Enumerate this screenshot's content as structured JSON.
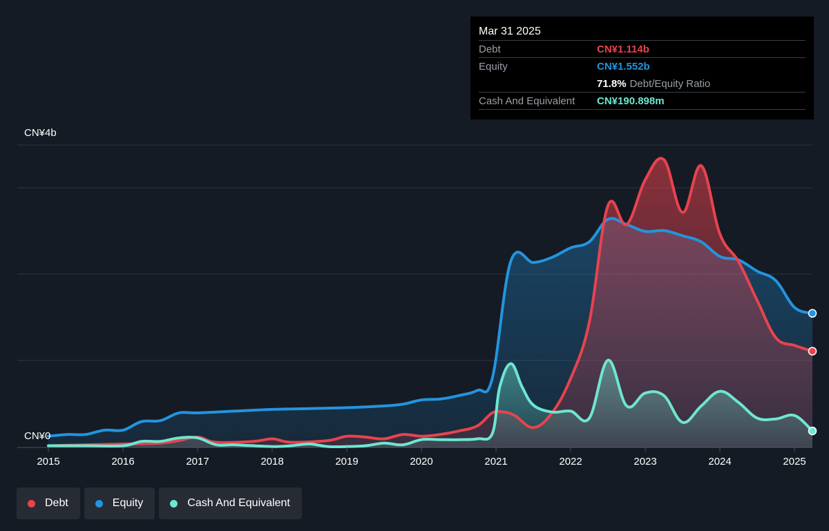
{
  "tooltip": {
    "date": "Mar 31 2025",
    "debt_label": "Debt",
    "debt_value": "CN¥1.114b",
    "equity_label": "Equity",
    "equity_value": "CN¥1.552b",
    "ratio_value": "71.8%",
    "ratio_label": "Debt/Equity Ratio",
    "cash_label": "Cash And Equivalent",
    "cash_value": "CN¥190.898m"
  },
  "legend": [
    {
      "label": "Debt",
      "color": "#e8434f"
    },
    {
      "label": "Equity",
      "color": "#2394df"
    },
    {
      "label": "Cash And Equivalent",
      "color": "#6ee6d0"
    }
  ],
  "chart_data": {
    "type": "area",
    "y_top_label": "CN¥4b",
    "y_bottom_label": "CN¥0",
    "ylim": [
      0,
      3.5
    ],
    "xlim": [
      2015.0,
      2025.24
    ],
    "x_ticks": [
      "2015",
      "2016",
      "2017",
      "2018",
      "2019",
      "2020",
      "2021",
      "2022",
      "2023",
      "2024",
      "2025"
    ],
    "grid": true,
    "series": [
      {
        "name": "Debt",
        "color": "#e8434f",
        "points": [
          [
            2015.0,
            0.02
          ],
          [
            2015.5,
            0.03
          ],
          [
            2016.0,
            0.04
          ],
          [
            2016.5,
            0.05
          ],
          [
            2016.75,
            0.08
          ],
          [
            2017.0,
            0.12
          ],
          [
            2017.25,
            0.06
          ],
          [
            2017.75,
            0.07
          ],
          [
            2018.0,
            0.1
          ],
          [
            2018.25,
            0.06
          ],
          [
            2018.75,
            0.08
          ],
          [
            2019.0,
            0.13
          ],
          [
            2019.25,
            0.12
          ],
          [
            2019.5,
            0.1
          ],
          [
            2019.75,
            0.15
          ],
          [
            2020.0,
            0.13
          ],
          [
            2020.25,
            0.15
          ],
          [
            2020.5,
            0.19
          ],
          [
            2020.75,
            0.25
          ],
          [
            2020.95,
            0.4
          ],
          [
            2021.1,
            0.41
          ],
          [
            2021.25,
            0.37
          ],
          [
            2021.5,
            0.23
          ],
          [
            2021.75,
            0.4
          ],
          [
            2022.0,
            0.8
          ],
          [
            2022.25,
            1.45
          ],
          [
            2022.5,
            2.8
          ],
          [
            2022.75,
            2.58
          ],
          [
            2023.0,
            3.1
          ],
          [
            2023.25,
            3.33
          ],
          [
            2023.5,
            2.72
          ],
          [
            2023.75,
            3.26
          ],
          [
            2024.0,
            2.47
          ],
          [
            2024.25,
            2.15
          ],
          [
            2024.5,
            1.7
          ],
          [
            2024.75,
            1.27
          ],
          [
            2025.0,
            1.18
          ],
          [
            2025.24,
            1.114
          ]
        ]
      },
      {
        "name": "Equity",
        "color": "#2394df",
        "points": [
          [
            2015.0,
            0.13
          ],
          [
            2015.25,
            0.15
          ],
          [
            2015.5,
            0.15
          ],
          [
            2015.75,
            0.2
          ],
          [
            2016.0,
            0.2
          ],
          [
            2016.25,
            0.3
          ],
          [
            2016.5,
            0.31
          ],
          [
            2016.75,
            0.4
          ],
          [
            2017.0,
            0.4
          ],
          [
            2017.5,
            0.42
          ],
          [
            2018.0,
            0.44
          ],
          [
            2018.5,
            0.45
          ],
          [
            2019.0,
            0.46
          ],
          [
            2019.5,
            0.48
          ],
          [
            2019.75,
            0.5
          ],
          [
            2020.0,
            0.55
          ],
          [
            2020.25,
            0.56
          ],
          [
            2020.5,
            0.6
          ],
          [
            2020.75,
            0.66
          ],
          [
            2020.95,
            0.8
          ],
          [
            2021.2,
            2.16
          ],
          [
            2021.5,
            2.14
          ],
          [
            2021.75,
            2.2
          ],
          [
            2022.0,
            2.31
          ],
          [
            2022.25,
            2.38
          ],
          [
            2022.5,
            2.64
          ],
          [
            2022.75,
            2.58
          ],
          [
            2023.0,
            2.5
          ],
          [
            2023.25,
            2.51
          ],
          [
            2023.5,
            2.45
          ],
          [
            2023.75,
            2.38
          ],
          [
            2024.0,
            2.21
          ],
          [
            2024.25,
            2.17
          ],
          [
            2024.5,
            2.04
          ],
          [
            2024.75,
            1.93
          ],
          [
            2025.0,
            1.62
          ],
          [
            2025.24,
            1.552
          ]
        ]
      },
      {
        "name": "Cash And Equivalent",
        "color": "#6ee6d0",
        "points": [
          [
            2015.0,
            0.02
          ],
          [
            2015.5,
            0.02
          ],
          [
            2016.0,
            0.02
          ],
          [
            2016.25,
            0.07
          ],
          [
            2016.5,
            0.07
          ],
          [
            2016.75,
            0.11
          ],
          [
            2017.0,
            0.11
          ],
          [
            2017.25,
            0.03
          ],
          [
            2017.5,
            0.03
          ],
          [
            2018.0,
            0.01
          ],
          [
            2018.25,
            0.02
          ],
          [
            2018.5,
            0.04
          ],
          [
            2018.75,
            0.01
          ],
          [
            2019.0,
            0.01
          ],
          [
            2019.25,
            0.02
          ],
          [
            2019.5,
            0.05
          ],
          [
            2019.75,
            0.03
          ],
          [
            2020.0,
            0.09
          ],
          [
            2020.25,
            0.09
          ],
          [
            2020.5,
            0.09
          ],
          [
            2020.75,
            0.1
          ],
          [
            2020.95,
            0.16
          ],
          [
            2021.05,
            0.7
          ],
          [
            2021.2,
            0.97
          ],
          [
            2021.35,
            0.7
          ],
          [
            2021.5,
            0.49
          ],
          [
            2021.75,
            0.41
          ],
          [
            2022.0,
            0.42
          ],
          [
            2022.25,
            0.34
          ],
          [
            2022.5,
            1.01
          ],
          [
            2022.75,
            0.48
          ],
          [
            2023.0,
            0.63
          ],
          [
            2023.25,
            0.6
          ],
          [
            2023.5,
            0.29
          ],
          [
            2023.75,
            0.48
          ],
          [
            2024.0,
            0.65
          ],
          [
            2024.25,
            0.52
          ],
          [
            2024.5,
            0.34
          ],
          [
            2024.75,
            0.33
          ],
          [
            2025.0,
            0.37
          ],
          [
            2025.24,
            0.191
          ]
        ]
      }
    ]
  }
}
